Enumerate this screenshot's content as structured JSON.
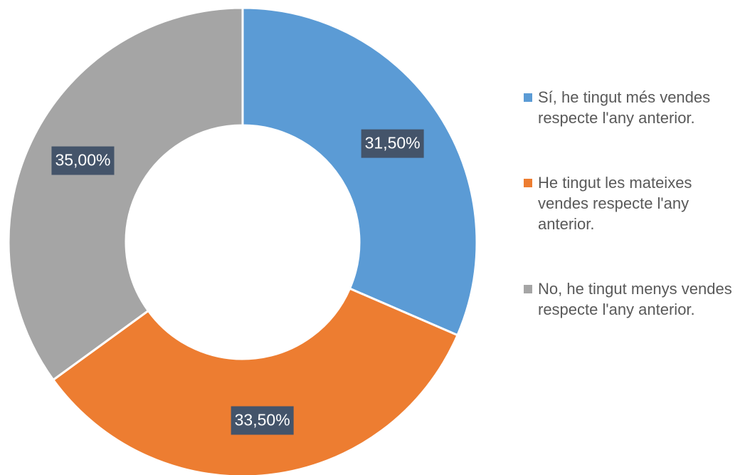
{
  "chart_data": {
    "type": "donut",
    "categories": [
      "Sí, he tingut més vendes respecte l'any anterior.",
      "He tingut les mateixes vendes respecte l'any anterior.",
      "No, he tingut menys vendes respecte l'any anterior."
    ],
    "values": [
      31.5,
      33.5,
      35
    ],
    "value_labels": [
      "31,50%",
      "33,50%",
      "35,00%"
    ],
    "colors": [
      "#5b9bd5",
      "#ed7d31",
      "#a5a5a5"
    ],
    "legend": "right"
  }
}
